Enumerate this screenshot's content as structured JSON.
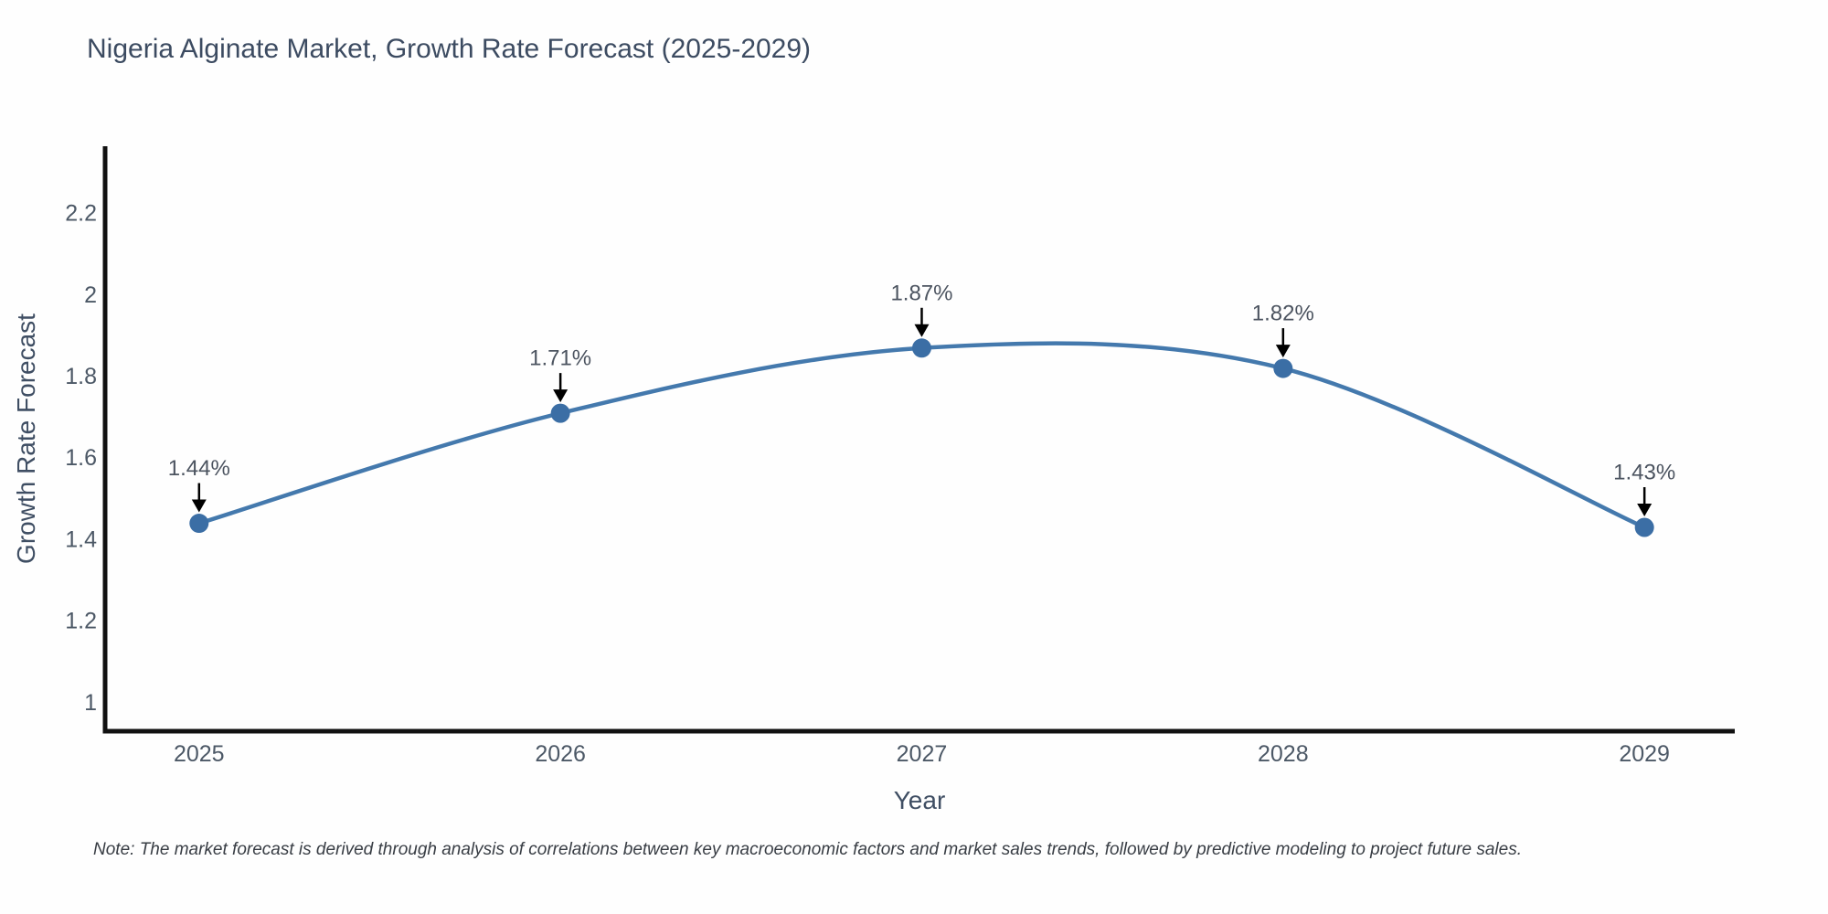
{
  "title": "Nigeria Alginate Market, Growth Rate Forecast (2025-2029)",
  "note": "Note: The market forecast is derived through analysis of correlations between key macroeconomic factors and market sales trends, followed by predictive modeling to project future sales.",
  "chart_data": {
    "type": "line",
    "title": "Nigeria Alginate Market, Growth Rate Forecast (2025-2029)",
    "xlabel": "Year",
    "ylabel": "Growth Rate Forecast",
    "x": [
      2025,
      2026,
      2027,
      2028,
      2029
    ],
    "x_tick_labels": [
      "2025",
      "2026",
      "2027",
      "2028",
      "2029"
    ],
    "values": [
      1.44,
      1.71,
      1.87,
      1.82,
      1.43
    ],
    "point_labels": [
      "1.44%",
      "1.71%",
      "1.87%",
      "1.82%",
      "1.43%"
    ],
    "y_ticks": [
      1,
      1.2,
      1.4,
      1.6,
      1.8,
      2,
      2.2
    ],
    "y_tick_labels": [
      "1",
      "1.2",
      "1.4",
      "1.6",
      "1.8",
      "2",
      "2.2"
    ],
    "xlim": [
      2024.74,
      2029.25
    ],
    "ylim": [
      0.93,
      2.365
    ],
    "line_shape": "spline",
    "grid": false,
    "legend": false,
    "annotation_arrows": true,
    "colors": {
      "line": "#4479ad",
      "marker": "#3b6ea5",
      "axis": "#111111",
      "arrow": "#000000"
    }
  }
}
